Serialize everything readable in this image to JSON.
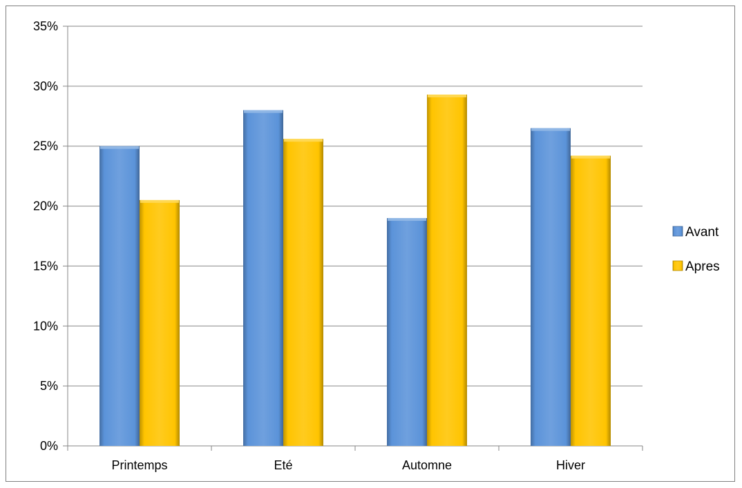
{
  "chart_data": {
    "type": "bar",
    "categories": [
      "Printemps",
      "Eté",
      "Automne",
      "Hiver"
    ],
    "series": [
      {
        "name": "Avant",
        "color": "#5b93d9",
        "values": [
          25.0,
          28.0,
          19.0,
          26.5
        ]
      },
      {
        "name": "Apres",
        "color": "#ffc400",
        "values": [
          20.5,
          25.6,
          29.3,
          24.2
        ]
      }
    ],
    "ylim": [
      0,
      35
    ],
    "yticks": [
      0,
      5,
      10,
      15,
      20,
      25,
      30,
      35
    ],
    "ytick_labels": [
      "0%",
      "5%",
      "10%",
      "15%",
      "20%",
      "25%",
      "30%",
      "35%"
    ],
    "y_unit": "percent",
    "grid": true,
    "legend_position": "right"
  }
}
